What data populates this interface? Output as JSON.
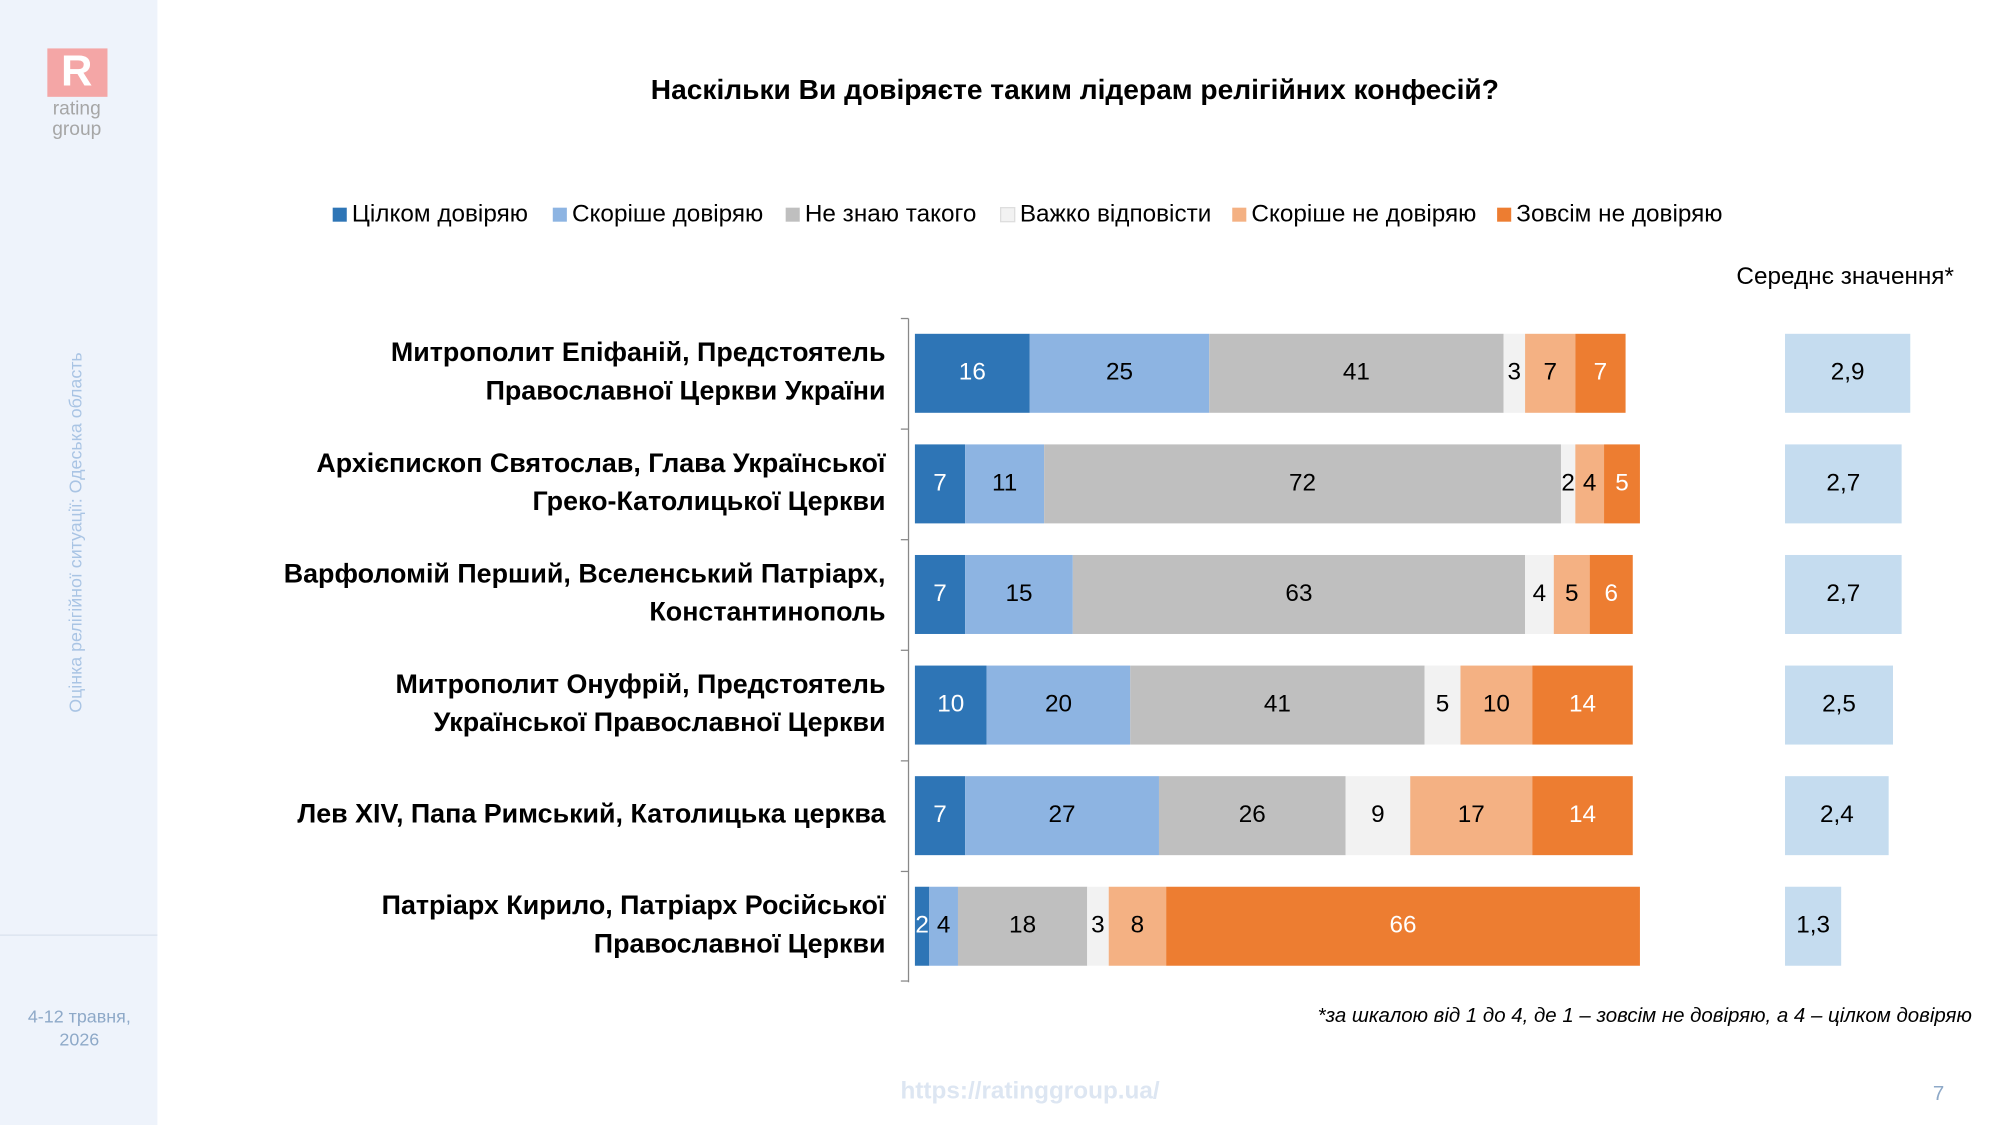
{
  "slide": {
    "logo": "R",
    "logo_lines": [
      "rating",
      "group"
    ],
    "sidebar_title": "Оцінка релігійної ситуації: Одеська область",
    "date_lines": [
      "4-12 травня,",
      "2026"
    ],
    "footnote": "*за шкалою від 1 до 4, де 1 – зовсім не довіряю, а 4 – цілком довіряю",
    "url": "https://ratinggroup.ua/",
    "page": "7"
  },
  "chart_data": [
    {
      "type": "stacked-bar",
      "orientation": "horizontal",
      "title": "Наскільки Ви довіряєте таким лідерам релігійних конфесій?",
      "categories": [
        [
          "Митрополит Епіфаній, Предстоятель",
          "Православної Церкви України"
        ],
        [
          "Архієпископ Святослав, Глава Української",
          "Греко-Католицької Церкви"
        ],
        [
          "Варфоломій Перший, Вселенський Патріарх,",
          "Константинополь"
        ],
        [
          "Митрополит Онуфрій, Предстоятель",
          "Української Православної Церкви"
        ],
        [
          "Лев XIV, Папа Римський, Католицька церква"
        ],
        [
          "Патріарх Кирило, Патріарх Російської",
          "Православної Церкви"
        ]
      ],
      "xlim": [
        0,
        100
      ],
      "legend": "top",
      "series": [
        {
          "name": "Цілком довіряю",
          "color": "#2e75b6",
          "values": [
            16,
            7,
            7,
            10,
            7,
            2
          ]
        },
        {
          "name": "Скоріше довіряю",
          "color": "#8db4e2",
          "values": [
            25,
            11,
            15,
            20,
            27,
            4
          ]
        },
        {
          "name": "Не знаю такого",
          "color": "#bfbfbf",
          "values": [
            41,
            72,
            63,
            41,
            26,
            18
          ]
        },
        {
          "name": "Важко відповісти",
          "color": "#f2f2f2",
          "values": [
            3,
            2,
            4,
            5,
            9,
            3
          ]
        },
        {
          "name": "Скоріше не довіряю",
          "color": "#f4b183",
          "values": [
            7,
            4,
            5,
            10,
            17,
            8
          ]
        },
        {
          "name": "Зовсім не довіряю",
          "color": "#ed7d31",
          "values": [
            7,
            5,
            6,
            14,
            14,
            66
          ]
        }
      ]
    },
    {
      "type": "bar",
      "orientation": "horizontal",
      "title": "Середнє значення*",
      "color": "#c5dcef",
      "xlim": [
        0,
        4
      ],
      "values": [
        2.9,
        2.7,
        2.7,
        2.5,
        2.4,
        1.3
      ],
      "value_labels": [
        "2,9",
        "2,7",
        "2,7",
        "2,5",
        "2,4",
        "1,3"
      ]
    }
  ]
}
